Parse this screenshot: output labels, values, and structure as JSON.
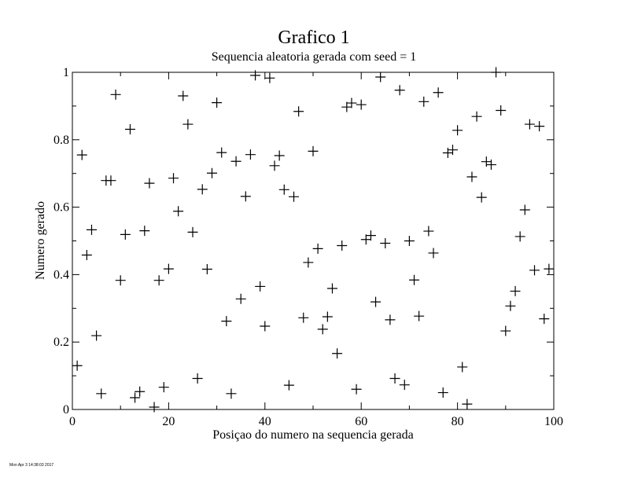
{
  "chart_data": {
    "type": "scatter",
    "title": "Grafico 1",
    "subtitle": "Sequencia aleatoria gerada com seed = 1",
    "xlabel": "Posiçao do numero na sequencia gerada",
    "ylabel": "Numero gerado",
    "xlim": [
      0,
      100
    ],
    "ylim": [
      0,
      1
    ],
    "xticks": [
      0,
      20,
      40,
      60,
      80,
      100
    ],
    "yticks": [
      0,
      0.2,
      0.4,
      0.6,
      0.8,
      1
    ],
    "grid": false,
    "marker": "plus",
    "marker_color": "#000000",
    "series": [
      {
        "x": [
          1,
          2,
          3,
          4,
          5,
          6,
          7,
          8,
          9,
          10,
          11,
          12,
          13,
          14,
          15,
          16,
          17,
          18,
          19,
          20,
          21,
          22,
          23,
          24,
          25,
          26,
          27,
          28,
          29,
          30,
          31,
          32,
          33,
          34,
          35,
          36,
          37,
          38,
          39,
          40,
          41,
          42,
          43,
          44,
          45,
          46,
          47,
          48,
          49,
          50,
          51,
          52,
          53,
          54,
          55,
          56,
          57,
          58,
          59,
          60,
          61,
          62,
          63,
          64,
          65,
          66,
          67,
          68,
          69,
          70,
          71,
          72,
          73,
          74,
          75,
          76,
          77,
          78,
          79,
          80,
          81,
          82,
          83,
          84,
          85,
          86,
          87,
          88,
          89,
          90,
          91,
          92,
          93,
          94,
          95,
          96,
          97,
          98,
          99
        ],
        "y": [
          0.13,
          0.755,
          0.458,
          0.533,
          0.219,
          0.047,
          0.679,
          0.679,
          0.934,
          0.383,
          0.519,
          0.831,
          0.035,
          0.053,
          0.53,
          0.671,
          0.007,
          0.383,
          0.066,
          0.417,
          0.686,
          0.588,
          0.93,
          0.846,
          0.526,
          0.092,
          0.653,
          0.416,
          0.701,
          0.91,
          0.762,
          0.262,
          0.047,
          0.736,
          0.328,
          0.632,
          0.756,
          0.991,
          0.365,
          0.247,
          0.983,
          0.723,
          0.753,
          0.652,
          0.072,
          0.631,
          0.884,
          0.272,
          0.436,
          0.766,
          0.477,
          0.238,
          0.275,
          0.359,
          0.166,
          0.486,
          0.897,
          0.909,
          0.06,
          0.904,
          0.504,
          0.516,
          0.319,
          0.986,
          0.493,
          0.266,
          0.092,
          0.947,
          0.073,
          0.5,
          0.384,
          0.277,
          0.913,
          0.529,
          0.464,
          0.94,
          0.05,
          0.761,
          0.77,
          0.828,
          0.126,
          0.016,
          0.69,
          0.869,
          0.629,
          0.735,
          0.726,
          1.0,
          0.887,
          0.233,
          0.307,
          0.351,
          0.513,
          0.592,
          0.846,
          0.413,
          0.84,
          0.269,
          0.417
        ]
      }
    ]
  },
  "footer": {
    "timestamp": "Mon Apr  3 14:38:03 2017"
  }
}
